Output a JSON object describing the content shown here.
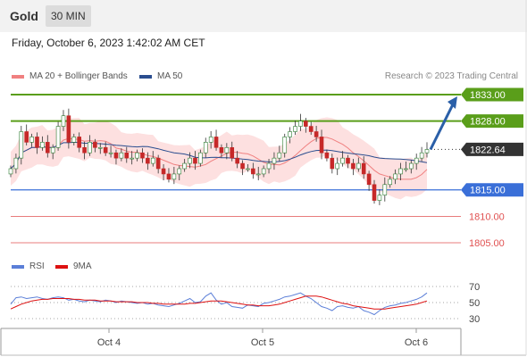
{
  "header": {
    "symbol": "Gold",
    "timeframe": "30 MIN"
  },
  "datetime": "Friday, October 6, 2023 1:42:02 AM CET",
  "legend": {
    "ma20": {
      "label": "MA 20 + Bollinger Bands",
      "color": "#f08080"
    },
    "ma50": {
      "label": "MA 50",
      "color": "#2a4d8f"
    }
  },
  "credit": "Research © 2023 Trading Central",
  "levels": [
    {
      "value": "1833.00",
      "kind": "resistance",
      "color": "#5a9e1a",
      "line": "solid"
    },
    {
      "value": "1828.00",
      "kind": "resistance",
      "color": "#5a9e1a",
      "line": "solid"
    },
    {
      "value": "1822.64",
      "kind": "last",
      "color": "#333333",
      "line": "dotted"
    },
    {
      "value": "1815.00",
      "kind": "pivot",
      "color": "#3a6fd8",
      "line": "solid"
    },
    {
      "value": "1810.00",
      "kind": "support",
      "color": "#e05050",
      "line": "thin"
    },
    {
      "value": "1805.00",
      "kind": "support",
      "color": "#e05050",
      "line": "thin"
    }
  ],
  "rsi": {
    "legend": {
      "rsi": "RSI",
      "ma": "9MA"
    },
    "colors": {
      "rsi": "#5b7fd8",
      "ma": "#dd1111"
    },
    "levels": [
      "70",
      "50",
      "30"
    ]
  },
  "xaxis": {
    "ticks": [
      "Oct 4",
      "Oct 5",
      "Oct 6"
    ]
  },
  "colors": {
    "up": "#2e7d32",
    "down": "#c62828",
    "band": "#fde0e0",
    "arrow": "#2a5fa8"
  },
  "chart_data": {
    "type": "candlestick",
    "price_range": [
      1804,
      1836
    ],
    "close_series": [
      1819,
      1821,
      1826,
      1824,
      1825,
      1823,
      1824,
      1822,
      1823,
      1827,
      1829,
      1824,
      1825,
      1823,
      1822,
      1824,
      1823,
      1823,
      1822,
      1822,
      1821,
      1822,
      1821,
      1821,
      1822,
      1821,
      1820,
      1821,
      1819,
      1818,
      1817,
      1818,
      1819,
      1820,
      1821,
      1820,
      1822,
      1824,
      1825,
      1823,
      1822,
      1823,
      1821,
      1820,
      1819,
      1819,
      1818,
      1818,
      1819,
      1820,
      1821,
      1822,
      1825,
      1826,
      1827,
      1828,
      1827,
      1826,
      1825,
      1822,
      1821,
      1819,
      1820,
      1821,
      1820,
      1819,
      1820,
      1818,
      1816,
      1813,
      1814,
      1816,
      1817,
      1818,
      1819,
      1819,
      1820,
      1821,
      1822,
      1822.64
    ],
    "rsi_values": [
      48,
      56,
      57,
      55,
      56,
      57,
      55,
      54,
      56,
      57,
      56,
      53,
      54,
      52,
      51,
      53,
      52,
      51,
      53,
      52,
      50,
      52,
      51,
      50,
      49,
      50,
      48,
      49,
      47,
      46,
      45,
      47,
      49,
      52,
      55,
      50,
      51,
      58,
      62,
      53,
      48,
      50,
      45,
      44,
      43,
      47,
      46,
      45,
      49,
      50,
      52,
      54,
      57,
      58,
      60,
      62,
      58,
      55,
      50,
      45,
      43,
      40,
      45,
      46,
      44,
      43,
      45,
      40,
      38,
      35,
      40,
      44,
      46,
      47,
      49,
      50,
      52,
      54,
      57,
      62
    ],
    "rsi_ma_values": [
      42,
      45,
      48,
      50,
      52,
      53,
      54,
      54,
      55,
      55,
      55,
      55,
      54,
      54,
      53,
      53,
      53,
      52,
      52,
      52,
      51,
      51,
      51,
      51,
      50,
      50,
      50,
      49,
      49,
      48,
      48,
      48,
      48,
      48,
      49,
      49,
      50,
      51,
      52,
      52,
      52,
      51,
      50,
      49,
      48,
      47,
      47,
      46,
      46,
      46,
      47,
      48,
      50,
      52,
      54,
      56,
      58,
      58,
      58,
      57,
      55,
      53,
      51,
      49,
      48,
      46,
      45,
      44,
      43,
      42,
      42,
      42,
      43,
      44,
      45,
      46,
      47,
      48,
      50,
      52
    ]
  }
}
